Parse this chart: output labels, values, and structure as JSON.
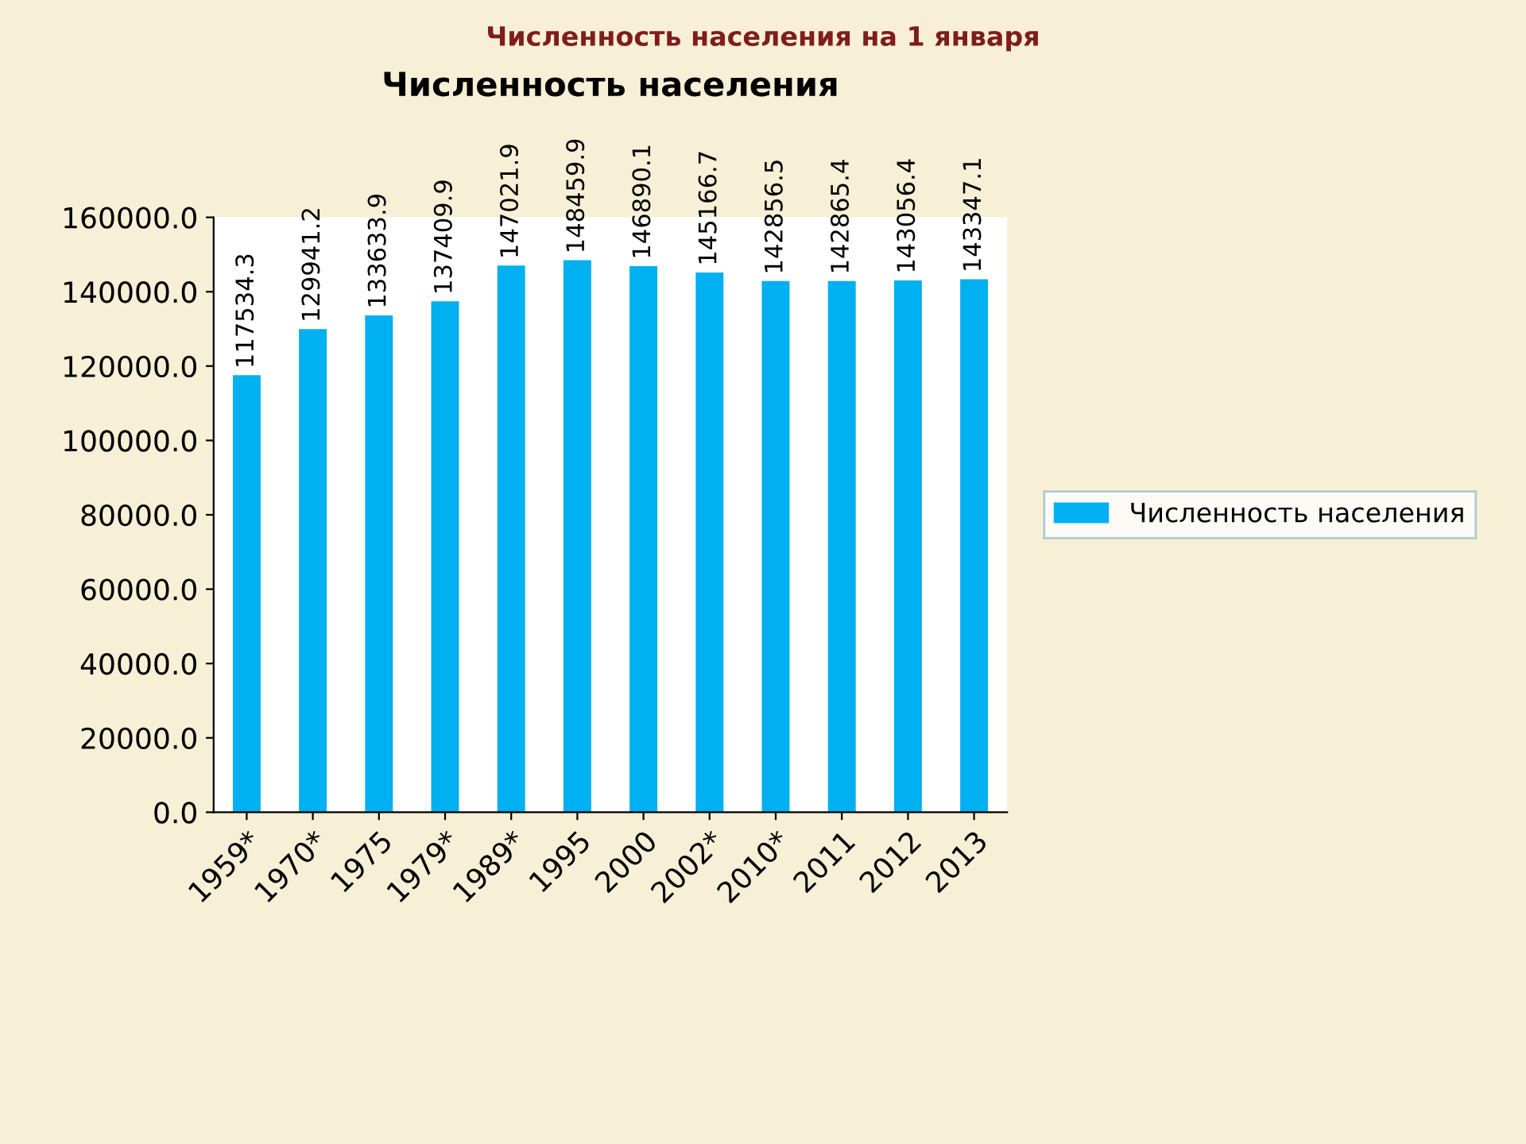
{
  "chart_data": {
    "type": "bar",
    "title": "Численность населения на 1 января",
    "subtitle": "Численность населения",
    "categories": [
      "1959*",
      "1970*",
      "1975",
      "1979*",
      "1989*",
      "1995",
      "2000",
      "2002*",
      "2010*",
      "2011",
      "2012",
      "2013"
    ],
    "series": [
      {
        "name": "Численность населения",
        "color": "#00b0f0",
        "values": [
          117534.3,
          129941.2,
          133633.9,
          137409.9,
          147021.9,
          148459.9,
          146890.1,
          145166.7,
          142856.5,
          142865.4,
          143056.4,
          143347.1
        ]
      }
    ],
    "ylim": [
      0,
      160000
    ],
    "yticks": [
      {
        "value": 0,
        "label": "0.0"
      },
      {
        "value": 20000,
        "label": "20000.0"
      },
      {
        "value": 40000,
        "label": "40000.0"
      },
      {
        "value": 60000,
        "label": "60000.0"
      },
      {
        "value": 80000,
        "label": "80000.0"
      },
      {
        "value": 100000,
        "label": "100000.0"
      },
      {
        "value": 120000,
        "label": "120000.0"
      },
      {
        "value": 140000,
        "label": "140000.0"
      },
      {
        "value": 160000,
        "label": "160000.0"
      }
    ],
    "data_labels": true,
    "grid": false,
    "legend": "right"
  }
}
